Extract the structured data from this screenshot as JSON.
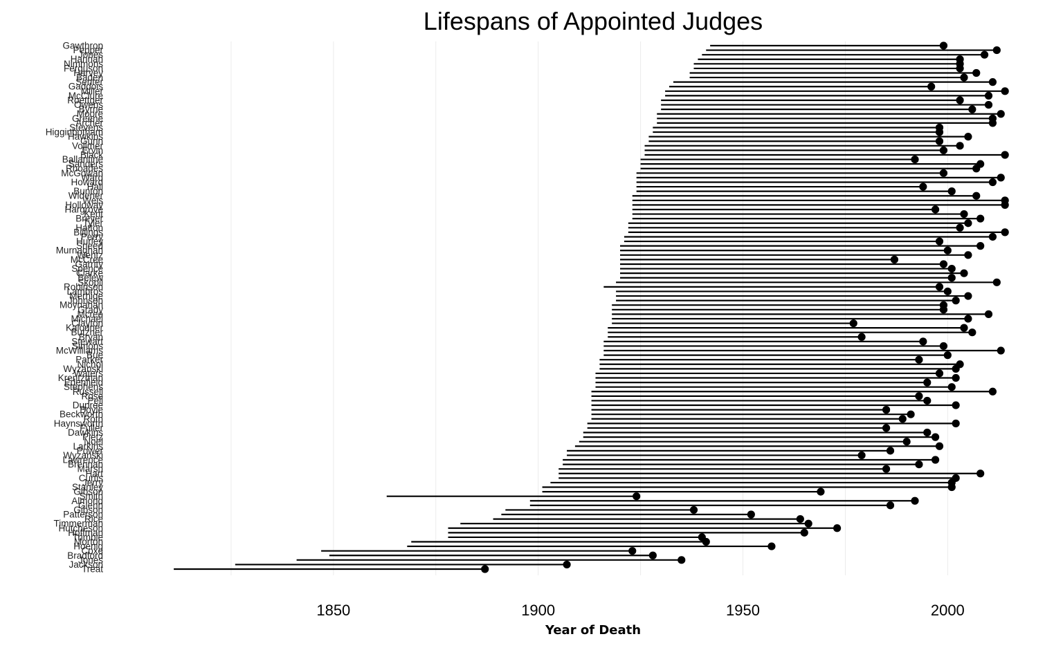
{
  "chart_data": {
    "type": "dot-range",
    "title": "Lifespans of Appointed Judges",
    "xlabel": "Year of Death",
    "ylabel": "",
    "xlim": [
      1800,
      2016
    ],
    "xticks": [
      1850,
      1900,
      1950,
      2000
    ],
    "grid": "vertical",
    "legend": "none",
    "judges": [
      {
        "name": "Gawthrop",
        "start": 1942,
        "end": 1999
      },
      {
        "name": "Pepper",
        "start": 1941,
        "end": 2012
      },
      {
        "name": "Jones",
        "start": 1940,
        "end": 2009
      },
      {
        "name": "Hannah",
        "start": 1939,
        "end": 2003
      },
      {
        "name": "Nimmons",
        "start": 1938,
        "end": 2003
      },
      {
        "name": "Ferguson",
        "start": 1938,
        "end": 2003
      },
      {
        "name": "Harvey",
        "start": 1937,
        "end": 2007
      },
      {
        "name": "Baden",
        "start": 1937,
        "end": 2004
      },
      {
        "name": "Senter",
        "start": 1933,
        "end": 2011
      },
      {
        "name": "Gaddois",
        "start": 1932,
        "end": 1996
      },
      {
        "name": "Miller",
        "start": 1931,
        "end": 2014
      },
      {
        "name": "McClure",
        "start": 1931,
        "end": 2010
      },
      {
        "name": "Roettger",
        "start": 1930,
        "end": 2003
      },
      {
        "name": "Owens",
        "start": 1930,
        "end": 2010
      },
      {
        "name": "Byrne",
        "start": 1930,
        "end": 2006
      },
      {
        "name": "Moore",
        "start": 1929,
        "end": 2013
      },
      {
        "name": "Greene",
        "start": 1929,
        "end": 2011
      },
      {
        "name": "Archer",
        "start": 1929,
        "end": 2011
      },
      {
        "name": "Stevens",
        "start": 1928,
        "end": 1998
      },
      {
        "name": "Higginbotham",
        "start": 1928,
        "end": 1998
      },
      {
        "name": "Hawkins",
        "start": 1927,
        "end": 2005
      },
      {
        "name": "Gunn",
        "start": 1927,
        "end": 1998
      },
      {
        "name": "Vollmer",
        "start": 1926,
        "end": 2003
      },
      {
        "name": "Ervin",
        "start": 1926,
        "end": 1999
      },
      {
        "name": "Black",
        "start": 1926,
        "end": 2014
      },
      {
        "name": "Ballantine",
        "start": 1925,
        "end": 1992
      },
      {
        "name": "Sanders",
        "start": 1925,
        "end": 2008
      },
      {
        "name": "Rhoades",
        "start": 1925,
        "end": 2007
      },
      {
        "name": "McGowan",
        "start": 1924,
        "end": 1999
      },
      {
        "name": "Ward",
        "start": 1924,
        "end": 2013
      },
      {
        "name": "Howard",
        "start": 1924,
        "end": 2011
      },
      {
        "name": "Hall",
        "start": 1924,
        "end": 1994
      },
      {
        "name": "Bunton",
        "start": 1924,
        "end": 2001
      },
      {
        "name": "Widener",
        "start": 1923,
        "end": 2007
      },
      {
        "name": "Weis",
        "start": 1923,
        "end": 2014
      },
      {
        "name": "Holloway",
        "start": 1923,
        "end": 2014
      },
      {
        "name": "Hargrove",
        "start": 1923,
        "end": 1997
      },
      {
        "name": "Kent",
        "start": 1923,
        "end": 2004
      },
      {
        "name": "Breyer",
        "start": 1923,
        "end": 2008
      },
      {
        "name": "Tyler",
        "start": 1922,
        "end": 2005
      },
      {
        "name": "Hatton",
        "start": 1922,
        "end": 2003
      },
      {
        "name": "Billings",
        "start": 1922,
        "end": 2014
      },
      {
        "name": "Perry",
        "start": 1921,
        "end": 2011
      },
      {
        "name": "Hurley",
        "start": 1921,
        "end": 1998
      },
      {
        "name": "Sneed",
        "start": 1920,
        "end": 2008
      },
      {
        "name": "Murnaghan",
        "start": 1920,
        "end": 2000
      },
      {
        "name": "Wentz",
        "start": 1920,
        "end": 2005
      },
      {
        "name": "McCree",
        "start": 1920,
        "end": 1987
      },
      {
        "name": "Garrity",
        "start": 1920,
        "end": 1999
      },
      {
        "name": "Spence",
        "start": 1920,
        "end": 2001
      },
      {
        "name": "Clarke",
        "start": 1920,
        "end": 2004
      },
      {
        "name": "Belew",
        "start": 1920,
        "end": 2001
      },
      {
        "name": "Skopil",
        "start": 1919,
        "end": 2012
      },
      {
        "name": "Robinson",
        "start": 1916,
        "end": 1998
      },
      {
        "name": "Lambros",
        "start": 1919,
        "end": 2000
      },
      {
        "name": "Merhige",
        "start": 1919,
        "end": 2005
      },
      {
        "name": "Johnson",
        "start": 1919,
        "end": 2002
      },
      {
        "name": "Moynahan",
        "start": 1918,
        "end": 1999
      },
      {
        "name": "Grady",
        "start": 1918,
        "end": 1999
      },
      {
        "name": "Mcree",
        "start": 1918,
        "end": 2010
      },
      {
        "name": "Michael",
        "start": 1918,
        "end": 2005
      },
      {
        "name": "Clayton",
        "start": 1918,
        "end": 1977
      },
      {
        "name": "Kalodner",
        "start": 1917,
        "end": 2004
      },
      {
        "name": "Butzner",
        "start": 1917,
        "end": 2006
      },
      {
        "name": "Bryan",
        "start": 1917,
        "end": 1979
      },
      {
        "name": "Stewart",
        "start": 1916,
        "end": 1994
      },
      {
        "name": "Simons",
        "start": 1916,
        "end": 1999
      },
      {
        "name": "McWilliams",
        "start": 1916,
        "end": 2013
      },
      {
        "name": "Bue",
        "start": 1916,
        "end": 2000
      },
      {
        "name": "Parker",
        "start": 1915,
        "end": 1993
      },
      {
        "name": "Nichol",
        "start": 1915,
        "end": 2003
      },
      {
        "name": "Wyzanski",
        "start": 1915,
        "end": 2002
      },
      {
        "name": "Waters",
        "start": 1914,
        "end": 1998
      },
      {
        "name": "Krentzman",
        "start": 1914,
        "end": 2002
      },
      {
        "name": "Edenfield",
        "start": 1914,
        "end": 1995
      },
      {
        "name": "Stephens",
        "start": 1914,
        "end": 2001
      },
      {
        "name": "Russell",
        "start": 1913,
        "end": 2011
      },
      {
        "name": "Rose",
        "start": 1913,
        "end": 1993
      },
      {
        "name": "Pell",
        "start": 1913,
        "end": 1995
      },
      {
        "name": "Dupree",
        "start": 1913,
        "end": 2002
      },
      {
        "name": "Boyle",
        "start": 1913,
        "end": 1985
      },
      {
        "name": "Beckworth",
        "start": 1913,
        "end": 1991
      },
      {
        "name": "Roth",
        "start": 1913,
        "end": 1989
      },
      {
        "name": "Haynsworth",
        "start": 1912,
        "end": 2002
      },
      {
        "name": "Fuller",
        "start": 1912,
        "end": 1985
      },
      {
        "name": "Dawkins",
        "start": 1911,
        "end": 1995
      },
      {
        "name": "Pietz",
        "start": 1911,
        "end": 1997
      },
      {
        "name": "Noel",
        "start": 1910,
        "end": 1990
      },
      {
        "name": "Larkins",
        "start": 1909,
        "end": 1998
      },
      {
        "name": "Power",
        "start": 1907,
        "end": 1986
      },
      {
        "name": "Wyzanski",
        "start": 1907,
        "end": 1979
      },
      {
        "name": "Lawrence",
        "start": 1906,
        "end": 1997
      },
      {
        "name": "Brennan",
        "start": 1906,
        "end": 1993
      },
      {
        "name": "Marsh",
        "start": 1905,
        "end": 1985
      },
      {
        "name": "Hart",
        "start": 1905,
        "end": 2008
      },
      {
        "name": "Curtis",
        "start": 1905,
        "end": 2002
      },
      {
        "name": "Jerry",
        "start": 1903,
        "end": 2001
      },
      {
        "name": "Stanley",
        "start": 1901,
        "end": 2001
      },
      {
        "name": "Gibson",
        "start": 1901,
        "end": 1969
      },
      {
        "name": "Smith",
        "start": 1863,
        "end": 1924
      },
      {
        "name": "Almond",
        "start": 1898,
        "end": 1992
      },
      {
        "name": "Glenn",
        "start": 1898,
        "end": 1986
      },
      {
        "name": "Gibson",
        "start": 1892,
        "end": 1938
      },
      {
        "name": "Patterson",
        "start": 1891,
        "end": 1952
      },
      {
        "name": "Rice",
        "start": 1889,
        "end": 1964
      },
      {
        "name": "Timmerman",
        "start": 1881,
        "end": 1966
      },
      {
        "name": "Hutcheson",
        "start": 1878,
        "end": 1973
      },
      {
        "name": "Hoffman",
        "start": 1878,
        "end": 1965
      },
      {
        "name": "Trimble",
        "start": 1878,
        "end": 1940
      },
      {
        "name": "Morton",
        "start": 1869,
        "end": 1941
      },
      {
        "name": "Hoenig",
        "start": 1868,
        "end": 1957
      },
      {
        "name": "Coxe",
        "start": 1847,
        "end": 1923
      },
      {
        "name": "Bradford",
        "start": 1849,
        "end": 1928
      },
      {
        "name": "Jones",
        "start": 1841,
        "end": 1935
      },
      {
        "name": "Jackson",
        "start": 1826,
        "end": 1907
      },
      {
        "name": "Treat",
        "start": 1811,
        "end": 1887
      }
    ]
  }
}
